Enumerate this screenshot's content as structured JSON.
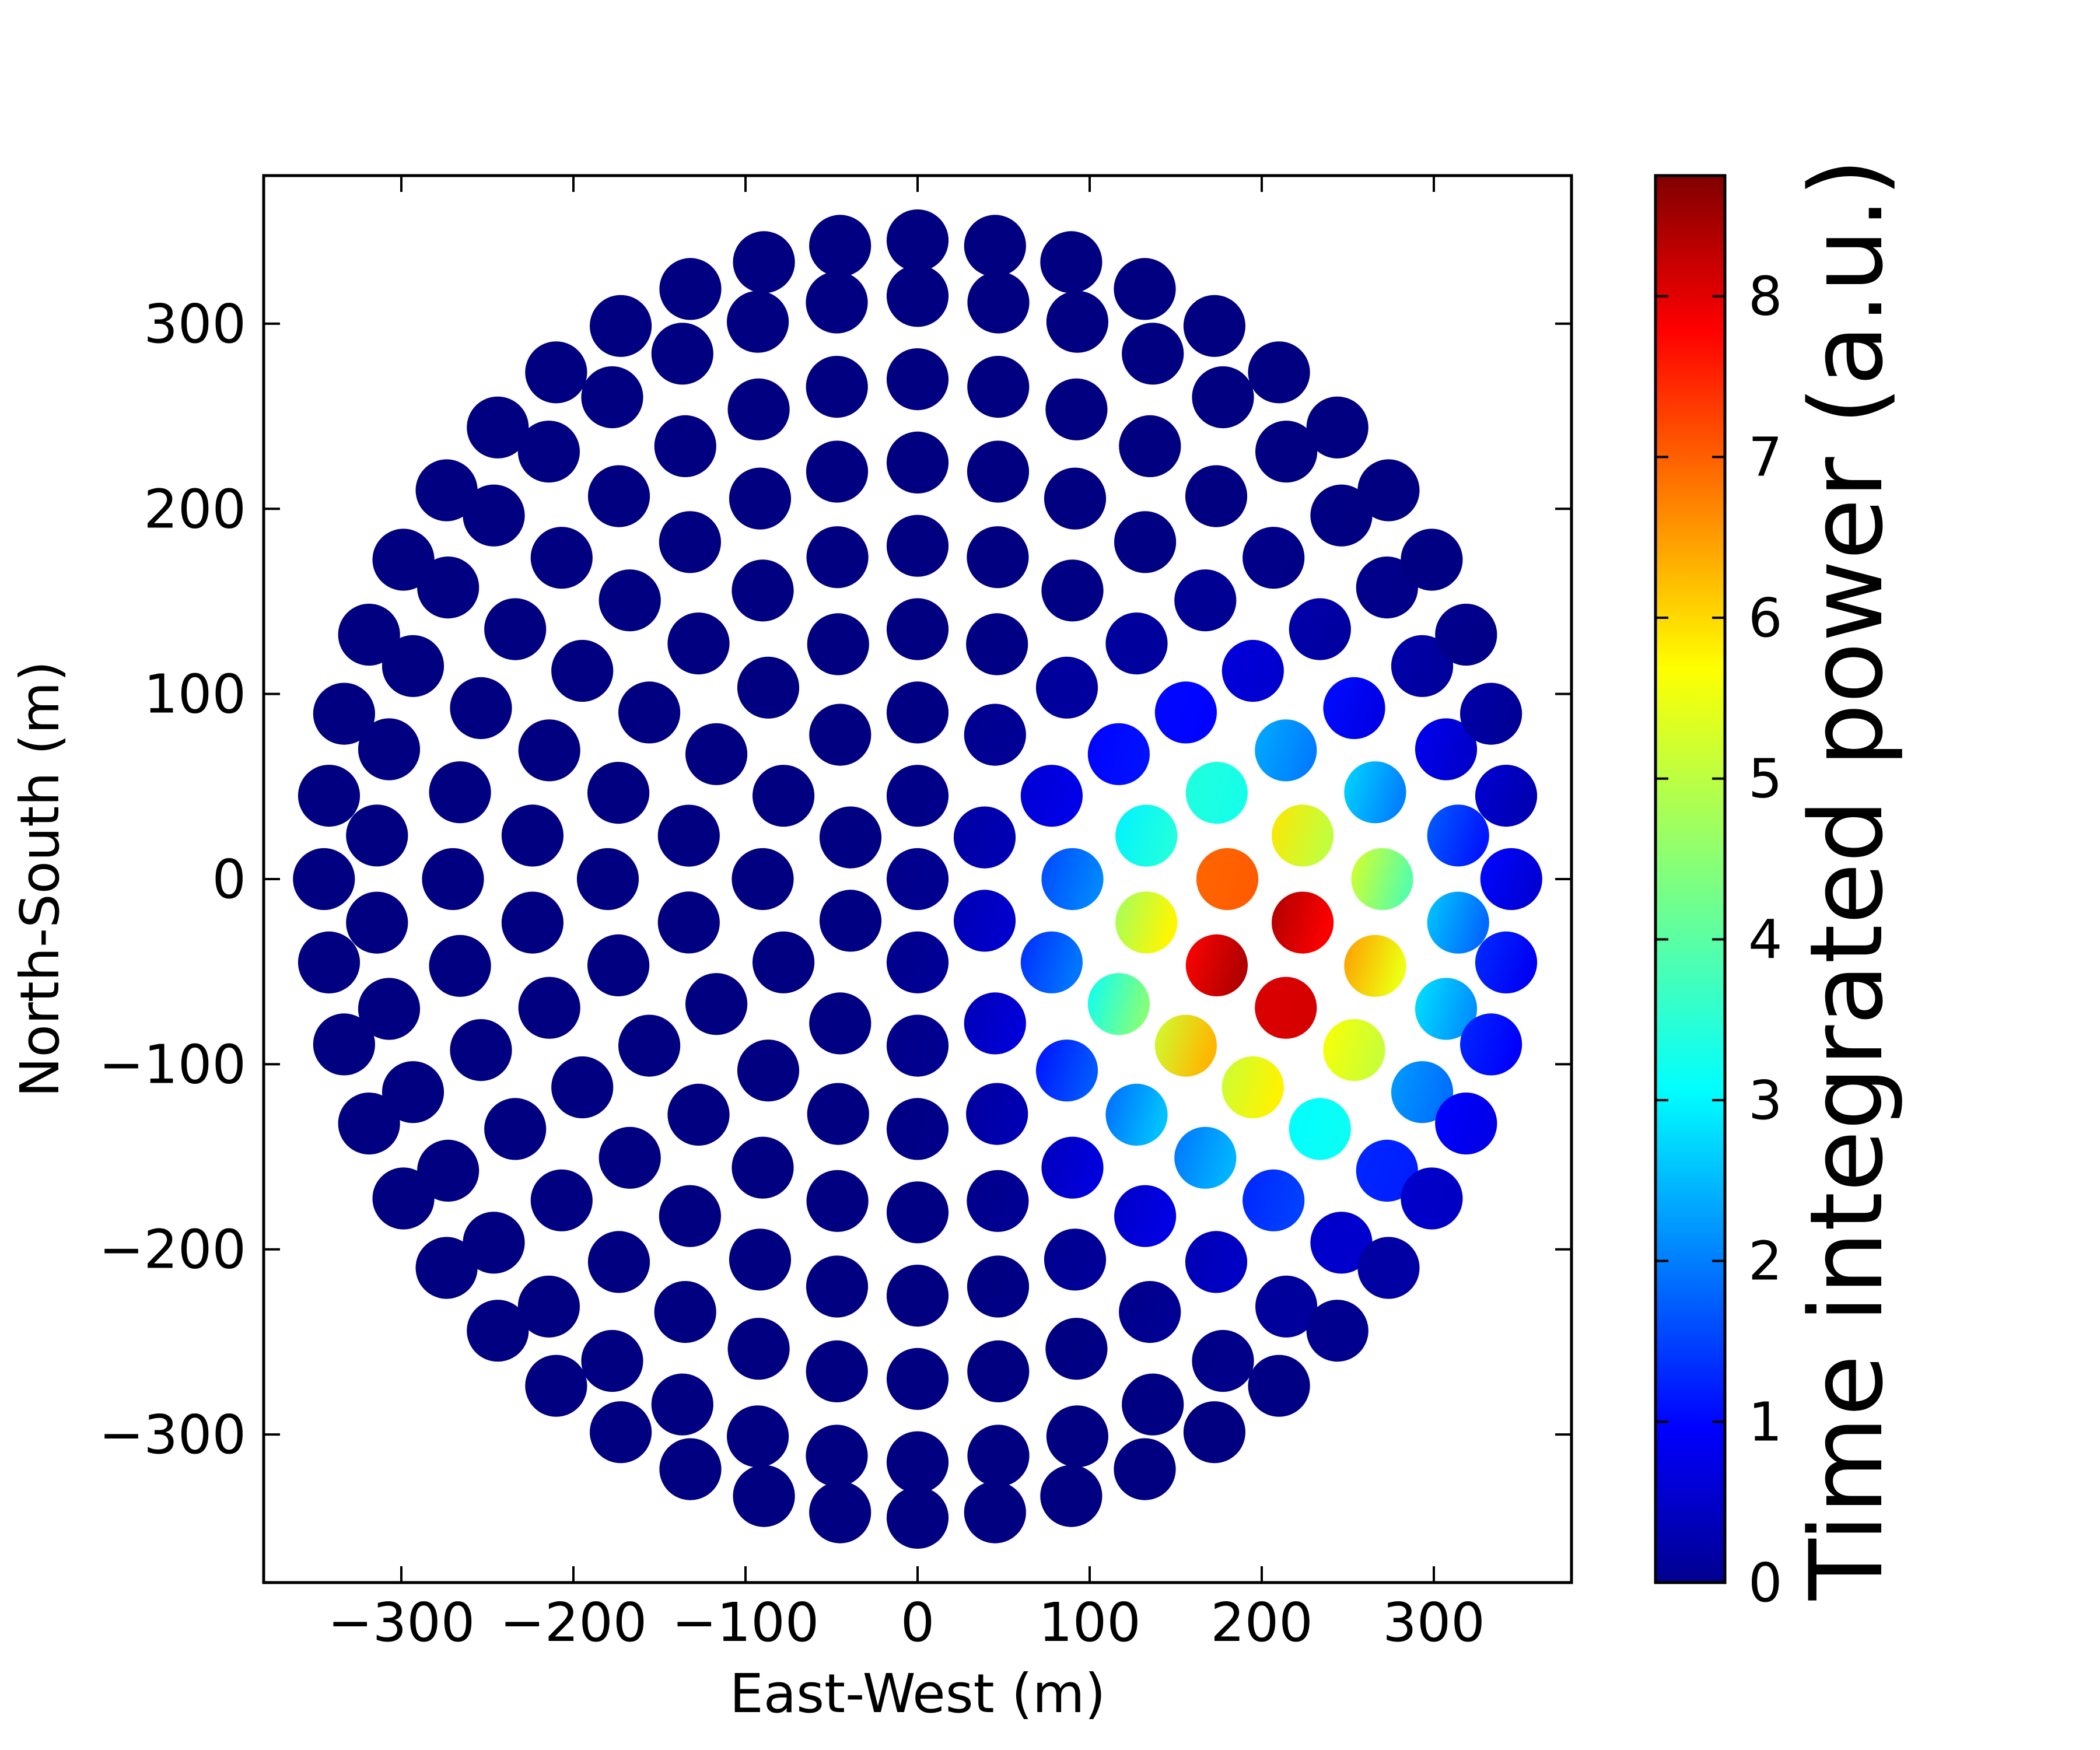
{
  "chart_data": {
    "type": "scatter",
    "title": "",
    "xlabel": "East-West (m)",
    "ylabel": "North-South (m)",
    "xlim": [
      -380,
      380
    ],
    "ylim": [
      -380,
      380
    ],
    "xticks": [
      -300,
      -200,
      -100,
      0,
      100,
      200,
      300
    ],
    "yticks": [
      -300,
      -200,
      -100,
      0,
      100,
      200,
      300
    ],
    "xtick_labels": [
      "−300",
      "−200",
      "−100",
      "0",
      "100",
      "200",
      "300"
    ],
    "ytick_labels": [
      "−300",
      "−200",
      "−100",
      "0",
      "100",
      "200",
      "300"
    ],
    "grid": false,
    "layout_note_visible": false,
    "marker": "filled circular patches of antenna positions",
    "array": {
      "center": [
        0,
        0
      ],
      "outer_radius": 350,
      "description": "Stations on concentric circular rings; most are at zero power, a beam footprint near (210, -40) reaches the maximum"
    },
    "rings": [
      {
        "radius": 0,
        "count": 1
      },
      {
        "radius": 45,
        "count": 6
      },
      {
        "radius": 90,
        "count": 12
      },
      {
        "radius": 135,
        "count": 18
      },
      {
        "radius": 180,
        "count": 24
      },
      {
        "radius": 225,
        "count": 30
      },
      {
        "radius": 270,
        "count": 36
      },
      {
        "radius": 315,
        "count": 42
      },
      {
        "radius": 345,
        "count": 48
      }
    ],
    "hotspot": {
      "x": 210,
      "y": -40,
      "peak_power": 8.75,
      "sigma_m": 70
    },
    "colorbar": {
      "label": "Time integrated power (a.u.)",
      "colormap": "jet",
      "range": [
        0,
        8.75
      ],
      "ticks": [
        0,
        1,
        2,
        3,
        4,
        5,
        6,
        7,
        8
      ],
      "tick_labels": [
        "0",
        "1",
        "2",
        "3",
        "4",
        "5",
        "6",
        "7",
        "8"
      ]
    },
    "colors": {
      "low": "#00008f",
      "high": "#800000"
    }
  }
}
